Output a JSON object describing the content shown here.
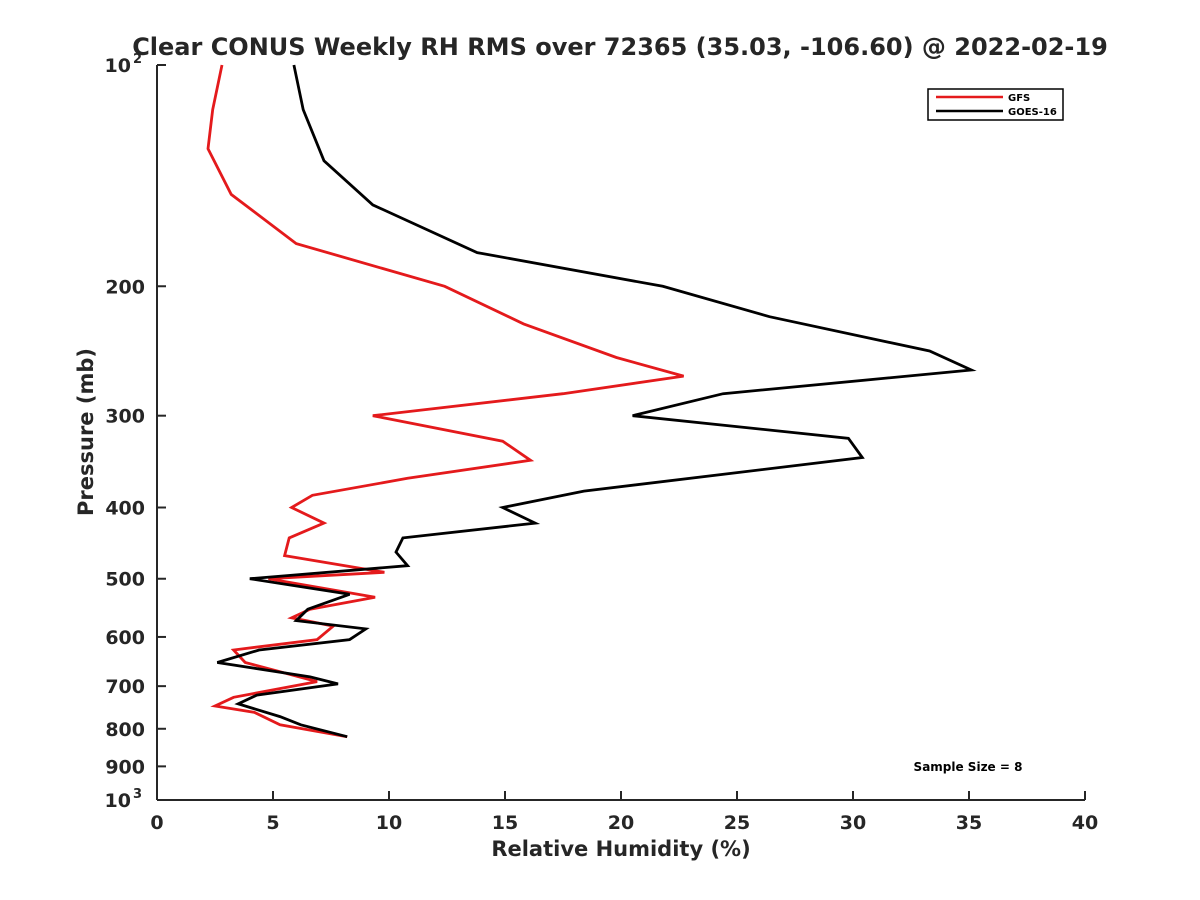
{
  "chart_data": {
    "type": "line",
    "title": "Clear CONUS Weekly RH RMS over 72365 (35.03, -106.60) @ 2022-02-19",
    "xlabel": "Relative Humidity (%)",
    "ylabel": "Pressure (mb)",
    "xlim": [
      0,
      40
    ],
    "ylim": [
      100,
      1000
    ],
    "yscale": "log",
    "y_reversed": true,
    "grid": false,
    "legend_position": "top-right",
    "x_ticks": [
      "0",
      "5",
      "10",
      "15",
      "20",
      "25",
      "30",
      "35",
      "40"
    ],
    "y_ticks": [
      {
        "value": 100,
        "label": "10",
        "sup": "2"
      },
      {
        "value": 200,
        "label": "200"
      },
      {
        "value": 300,
        "label": "300"
      },
      {
        "value": 400,
        "label": "400"
      },
      {
        "value": 500,
        "label": "500"
      },
      {
        "value": 600,
        "label": "600"
      },
      {
        "value": 700,
        "label": "700"
      },
      {
        "value": 800,
        "label": "800"
      },
      {
        "value": 900,
        "label": "900"
      },
      {
        "value": 1000,
        "label": "10",
        "sup": "3"
      }
    ],
    "series": [
      {
        "name": "GFS",
        "color": "#e41a1c",
        "points": [
          [
            2.8,
            100
          ],
          [
            2.4,
            115
          ],
          [
            2.2,
            130
          ],
          [
            3.2,
            150
          ],
          [
            6.0,
            175
          ],
          [
            12.4,
            200
          ],
          [
            15.8,
            225
          ],
          [
            19.8,
            250
          ],
          [
            22.7,
            265
          ],
          [
            17.5,
            280
          ],
          [
            9.3,
            300
          ],
          [
            14.9,
            325
          ],
          [
            16.1,
            345
          ],
          [
            10.8,
            365
          ],
          [
            6.7,
            385
          ],
          [
            5.8,
            400
          ],
          [
            7.2,
            420
          ],
          [
            5.7,
            440
          ],
          [
            5.5,
            465
          ],
          [
            9.8,
            490
          ],
          [
            4.8,
            500
          ],
          [
            9.4,
            530
          ],
          [
            6.6,
            550
          ],
          [
            5.8,
            565
          ],
          [
            7.6,
            580
          ],
          [
            6.9,
            605
          ],
          [
            3.3,
            625
          ],
          [
            3.8,
            650
          ],
          [
            6.9,
            690
          ],
          [
            3.3,
            725
          ],
          [
            2.5,
            745
          ],
          [
            4.2,
            760
          ],
          [
            5.3,
            790
          ],
          [
            8.2,
            820
          ]
        ]
      },
      {
        "name": "GOES-16",
        "color": "#000000",
        "points": [
          [
            5.9,
            100
          ],
          [
            6.3,
            115
          ],
          [
            7.2,
            135
          ],
          [
            9.3,
            155
          ],
          [
            13.8,
            180
          ],
          [
            21.8,
            200
          ],
          [
            26.4,
            220
          ],
          [
            33.3,
            245
          ],
          [
            35.1,
            260
          ],
          [
            24.4,
            280
          ],
          [
            20.5,
            300
          ],
          [
            29.8,
            322
          ],
          [
            30.4,
            342
          ],
          [
            18.4,
            380
          ],
          [
            14.9,
            400
          ],
          [
            16.3,
            420
          ],
          [
            10.6,
            440
          ],
          [
            10.3,
            460
          ],
          [
            10.8,
            480
          ],
          [
            4.0,
            500
          ],
          [
            8.3,
            525
          ],
          [
            6.5,
            550
          ],
          [
            6.0,
            570
          ],
          [
            9.0,
            585
          ],
          [
            8.3,
            605
          ],
          [
            4.4,
            625
          ],
          [
            2.6,
            650
          ],
          [
            6.6,
            680
          ],
          [
            7.8,
            695
          ],
          [
            4.3,
            720
          ],
          [
            3.5,
            740
          ],
          [
            5.3,
            770
          ],
          [
            6.2,
            790
          ],
          [
            8.2,
            820
          ]
        ]
      }
    ],
    "legend": [
      "GFS",
      "GOES-16"
    ],
    "annotation": "Sample Size = 8"
  }
}
